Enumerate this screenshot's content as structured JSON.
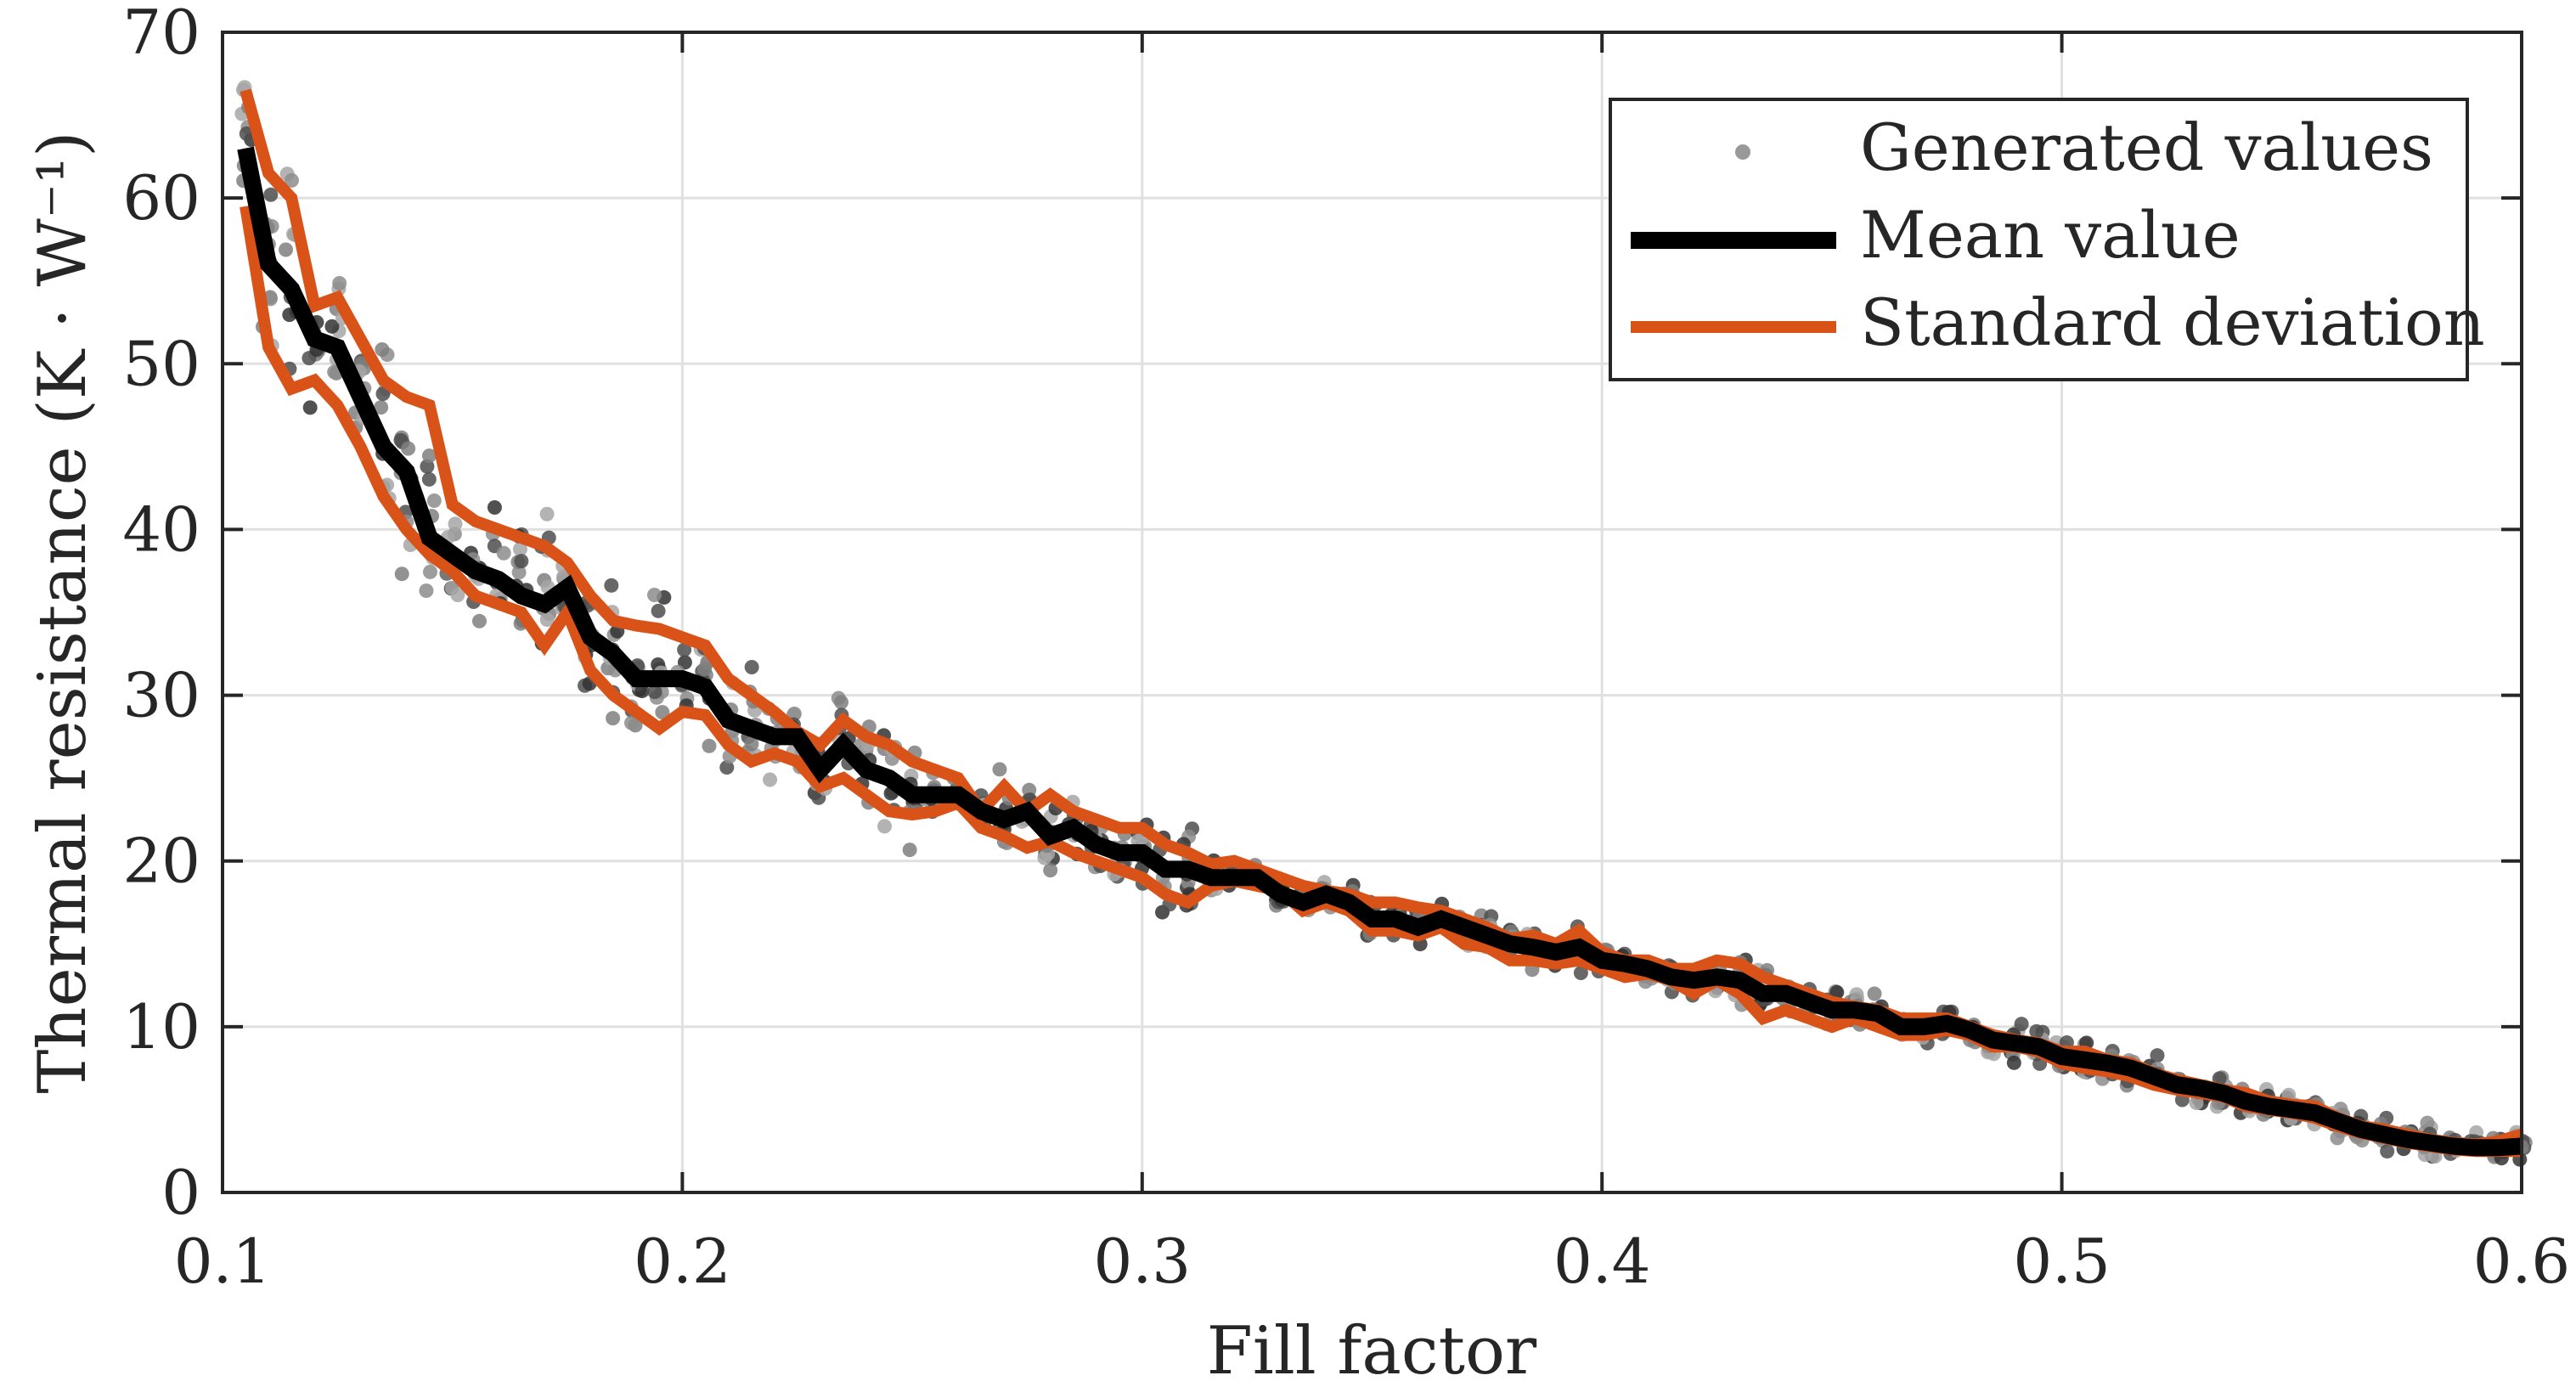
{
  "chart_data": {
    "type": "line",
    "title": "",
    "xlabel": "Fill factor",
    "ylabel": "Thermal resistance (K · W⁻¹)",
    "xlim": [
      0.1,
      0.6
    ],
    "ylim": [
      0,
      70
    ],
    "xticks": [
      0.1,
      0.2,
      0.3,
      0.4,
      0.5,
      0.6
    ],
    "xtick_labels": [
      "0.1",
      "0.2",
      "0.3",
      "0.4",
      "0.5",
      "0.6"
    ],
    "yticks": [
      0,
      10,
      20,
      30,
      40,
      50,
      60,
      70
    ],
    "ytick_labels": [
      "0",
      "10",
      "20",
      "30",
      "40",
      "50",
      "60",
      "70"
    ],
    "grid": true,
    "legend_position": "top-right",
    "legend": [
      "Generated values",
      "Mean value",
      "Standard deviation"
    ],
    "colors": {
      "scatter": "#7f7f7f",
      "mean": "#000000",
      "std": "#d95319",
      "grid": "#e0e0e0",
      "axis": "#262626"
    },
    "series": [
      {
        "name": "Mean value",
        "x": [
          0.105,
          0.11,
          0.115,
          0.12,
          0.125,
          0.13,
          0.135,
          0.14,
          0.145,
          0.15,
          0.155,
          0.16,
          0.165,
          0.17,
          0.175,
          0.18,
          0.185,
          0.19,
          0.195,
          0.2,
          0.205,
          0.21,
          0.215,
          0.22,
          0.225,
          0.23,
          0.235,
          0.24,
          0.245,
          0.25,
          0.255,
          0.26,
          0.265,
          0.27,
          0.275,
          0.28,
          0.285,
          0.29,
          0.295,
          0.3,
          0.305,
          0.31,
          0.315,
          0.32,
          0.325,
          0.33,
          0.335,
          0.34,
          0.345,
          0.35,
          0.355,
          0.36,
          0.365,
          0.37,
          0.375,
          0.38,
          0.385,
          0.39,
          0.395,
          0.4,
          0.405,
          0.41,
          0.415,
          0.42,
          0.425,
          0.43,
          0.435,
          0.44,
          0.445,
          0.45,
          0.455,
          0.46,
          0.465,
          0.47,
          0.475,
          0.48,
          0.485,
          0.49,
          0.495,
          0.5,
          0.505,
          0.51,
          0.515,
          0.52,
          0.525,
          0.53,
          0.535,
          0.54,
          0.545,
          0.55,
          0.555,
          0.56,
          0.565,
          0.57,
          0.575,
          0.58,
          0.585,
          0.59,
          0.595,
          0.6
        ],
        "values": [
          63.0,
          56.0,
          54.5,
          51.5,
          51.0,
          48.0,
          45.0,
          43.5,
          39.5,
          38.5,
          37.5,
          37.0,
          36.0,
          35.5,
          36.5,
          33.5,
          32.5,
          31.0,
          31.0,
          31.0,
          30.5,
          28.5,
          28.0,
          27.5,
          27.5,
          25.5,
          27.0,
          25.5,
          25.0,
          24.0,
          24.0,
          24.0,
          23.0,
          22.5,
          23.0,
          21.5,
          22.0,
          21.0,
          20.5,
          20.5,
          19.5,
          19.5,
          19.0,
          19.0,
          19.0,
          18.0,
          17.5,
          18.0,
          17.5,
          16.5,
          16.5,
          16.0,
          16.5,
          16.0,
          15.5,
          15.0,
          14.8,
          14.5,
          14.8,
          14.0,
          13.8,
          13.5,
          13.0,
          12.8,
          13.0,
          12.8,
          12.0,
          12.0,
          11.5,
          11.0,
          11.0,
          10.8,
          10.0,
          10.0,
          10.2,
          9.8,
          9.2,
          9.0,
          8.8,
          8.2,
          8.0,
          7.8,
          7.5,
          7.0,
          6.5,
          6.3,
          6.0,
          5.5,
          5.2,
          5.0,
          4.8,
          4.3,
          3.8,
          3.5,
          3.2,
          3.0,
          2.8,
          2.7,
          2.7,
          2.8
        ]
      },
      {
        "name": "Standard deviation (upper)",
        "x": [
          0.105,
          0.11,
          0.115,
          0.12,
          0.125,
          0.13,
          0.135,
          0.14,
          0.145,
          0.15,
          0.155,
          0.16,
          0.165,
          0.17,
          0.175,
          0.18,
          0.185,
          0.19,
          0.195,
          0.2,
          0.205,
          0.21,
          0.215,
          0.22,
          0.225,
          0.23,
          0.235,
          0.24,
          0.245,
          0.25,
          0.255,
          0.26,
          0.265,
          0.27,
          0.275,
          0.28,
          0.285,
          0.29,
          0.295,
          0.3,
          0.305,
          0.31,
          0.315,
          0.32,
          0.325,
          0.33,
          0.335,
          0.34,
          0.345,
          0.35,
          0.355,
          0.36,
          0.365,
          0.37,
          0.375,
          0.38,
          0.385,
          0.39,
          0.395,
          0.4,
          0.405,
          0.41,
          0.415,
          0.42,
          0.425,
          0.43,
          0.435,
          0.44,
          0.445,
          0.45,
          0.455,
          0.46,
          0.465,
          0.47,
          0.475,
          0.48,
          0.485,
          0.49,
          0.495,
          0.5,
          0.505,
          0.51,
          0.515,
          0.52,
          0.525,
          0.53,
          0.535,
          0.54,
          0.545,
          0.55,
          0.555,
          0.56,
          0.565,
          0.57,
          0.575,
          0.58,
          0.585,
          0.59,
          0.595,
          0.6
        ],
        "values": [
          66.5,
          61.5,
          60.0,
          53.5,
          54.0,
          51.5,
          49.0,
          48.0,
          47.5,
          41.5,
          40.5,
          40.0,
          39.5,
          39.0,
          38.0,
          36.0,
          34.5,
          34.2,
          34.0,
          33.5,
          33.0,
          31.0,
          30.0,
          29.0,
          27.8,
          27.0,
          28.5,
          27.5,
          27.0,
          26.0,
          25.5,
          25.0,
          23.0,
          24.5,
          23.0,
          24.0,
          23.0,
          22.5,
          22.0,
          22.0,
          21.0,
          20.5,
          19.8,
          20.0,
          19.5,
          19.0,
          18.5,
          18.2,
          18.0,
          17.5,
          17.5,
          17.2,
          17.0,
          16.5,
          16.0,
          15.3,
          15.5,
          15.0,
          15.8,
          14.5,
          14.0,
          14.0,
          13.5,
          13.5,
          14.0,
          13.8,
          13.0,
          12.5,
          12.0,
          11.5,
          11.2,
          11.0,
          10.5,
          10.5,
          10.5,
          10.0,
          9.5,
          9.2,
          9.0,
          8.5,
          8.5,
          8.0,
          7.8,
          7.2,
          6.8,
          6.5,
          6.2,
          6.0,
          5.5,
          5.3,
          5.2,
          4.5,
          4.0,
          3.8,
          3.5,
          3.2,
          3.0,
          2.9,
          3.1,
          3.5
        ]
      },
      {
        "name": "Standard deviation (lower)",
        "x": [
          0.105,
          0.11,
          0.115,
          0.12,
          0.125,
          0.13,
          0.135,
          0.14,
          0.145,
          0.15,
          0.155,
          0.16,
          0.165,
          0.17,
          0.175,
          0.18,
          0.185,
          0.19,
          0.195,
          0.2,
          0.205,
          0.21,
          0.215,
          0.22,
          0.225,
          0.23,
          0.235,
          0.24,
          0.245,
          0.25,
          0.255,
          0.26,
          0.265,
          0.27,
          0.275,
          0.28,
          0.285,
          0.29,
          0.295,
          0.3,
          0.305,
          0.31,
          0.315,
          0.32,
          0.325,
          0.33,
          0.335,
          0.34,
          0.345,
          0.35,
          0.355,
          0.36,
          0.365,
          0.37,
          0.375,
          0.38,
          0.385,
          0.39,
          0.395,
          0.4,
          0.405,
          0.41,
          0.415,
          0.42,
          0.425,
          0.43,
          0.435,
          0.44,
          0.445,
          0.45,
          0.455,
          0.46,
          0.465,
          0.47,
          0.475,
          0.48,
          0.485,
          0.49,
          0.495,
          0.5,
          0.505,
          0.51,
          0.515,
          0.52,
          0.525,
          0.53,
          0.535,
          0.54,
          0.545,
          0.55,
          0.555,
          0.56,
          0.565,
          0.57,
          0.575,
          0.58,
          0.585,
          0.59,
          0.595,
          0.6
        ],
        "values": [
          59.5,
          51.0,
          48.5,
          49.0,
          47.5,
          45.0,
          42.0,
          40.0,
          38.5,
          37.5,
          36.0,
          35.5,
          35.0,
          33.0,
          35.0,
          31.5,
          30.0,
          29.0,
          28.0,
          29.0,
          28.8,
          27.0,
          26.0,
          26.5,
          26.0,
          24.5,
          25.0,
          24.0,
          23.0,
          22.8,
          23.0,
          23.5,
          22.0,
          21.5,
          20.8,
          21.2,
          20.5,
          20.0,
          19.5,
          19.0,
          18.0,
          17.5,
          18.5,
          18.8,
          18.5,
          18.2,
          17.0,
          17.5,
          17.0,
          15.8,
          15.8,
          15.5,
          16.0,
          15.0,
          14.8,
          14.0,
          14.0,
          13.8,
          14.0,
          13.5,
          13.0,
          13.2,
          12.8,
          12.0,
          12.8,
          12.0,
          10.5,
          11.0,
          10.5,
          10.0,
          10.5,
          10.0,
          9.5,
          9.5,
          9.8,
          9.5,
          8.8,
          8.8,
          8.5,
          7.8,
          7.5,
          7.3,
          7.0,
          6.5,
          6.2,
          6.0,
          5.8,
          5.2,
          5.0,
          4.8,
          4.5,
          4.0,
          3.6,
          3.3,
          3.0,
          2.8,
          2.6,
          2.5,
          2.5,
          2.5
        ]
      }
    ],
    "scatter_note": "Generated values: ~10 samples per x position scattered around the mean within about ±1.5 standard deviations"
  }
}
